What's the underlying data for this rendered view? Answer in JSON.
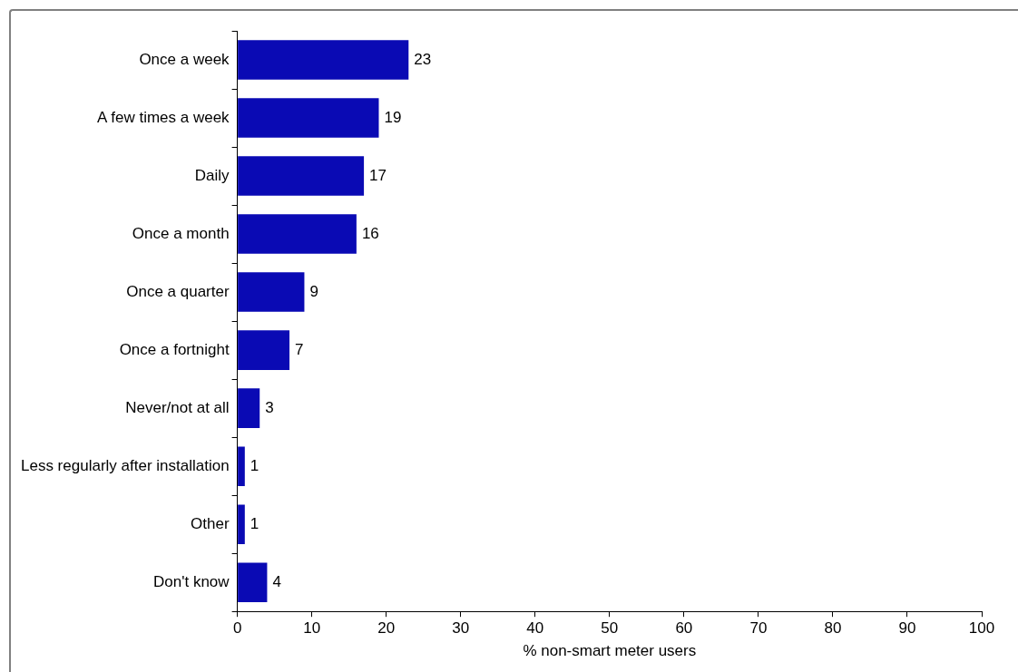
{
  "chart_data": {
    "type": "bar",
    "orientation": "horizontal",
    "categories": [
      "Once a week",
      "A few times a week",
      "Daily",
      "Once a month",
      "Once a quarter",
      "Once a fortnight",
      "Never/not at all",
      "Less regularly after installation",
      "Other",
      "Don't know"
    ],
    "values": [
      23,
      19,
      17,
      16,
      9,
      7,
      3,
      1,
      1,
      4
    ],
    "color": "#0a0ab4",
    "xlim": [
      0,
      100
    ],
    "xticks": [
      0,
      10,
      20,
      30,
      40,
      50,
      60,
      70,
      80,
      90,
      100
    ],
    "xlabel": "% non-smart meter users",
    "data_labels": true,
    "grid": false,
    "legend": false
  }
}
